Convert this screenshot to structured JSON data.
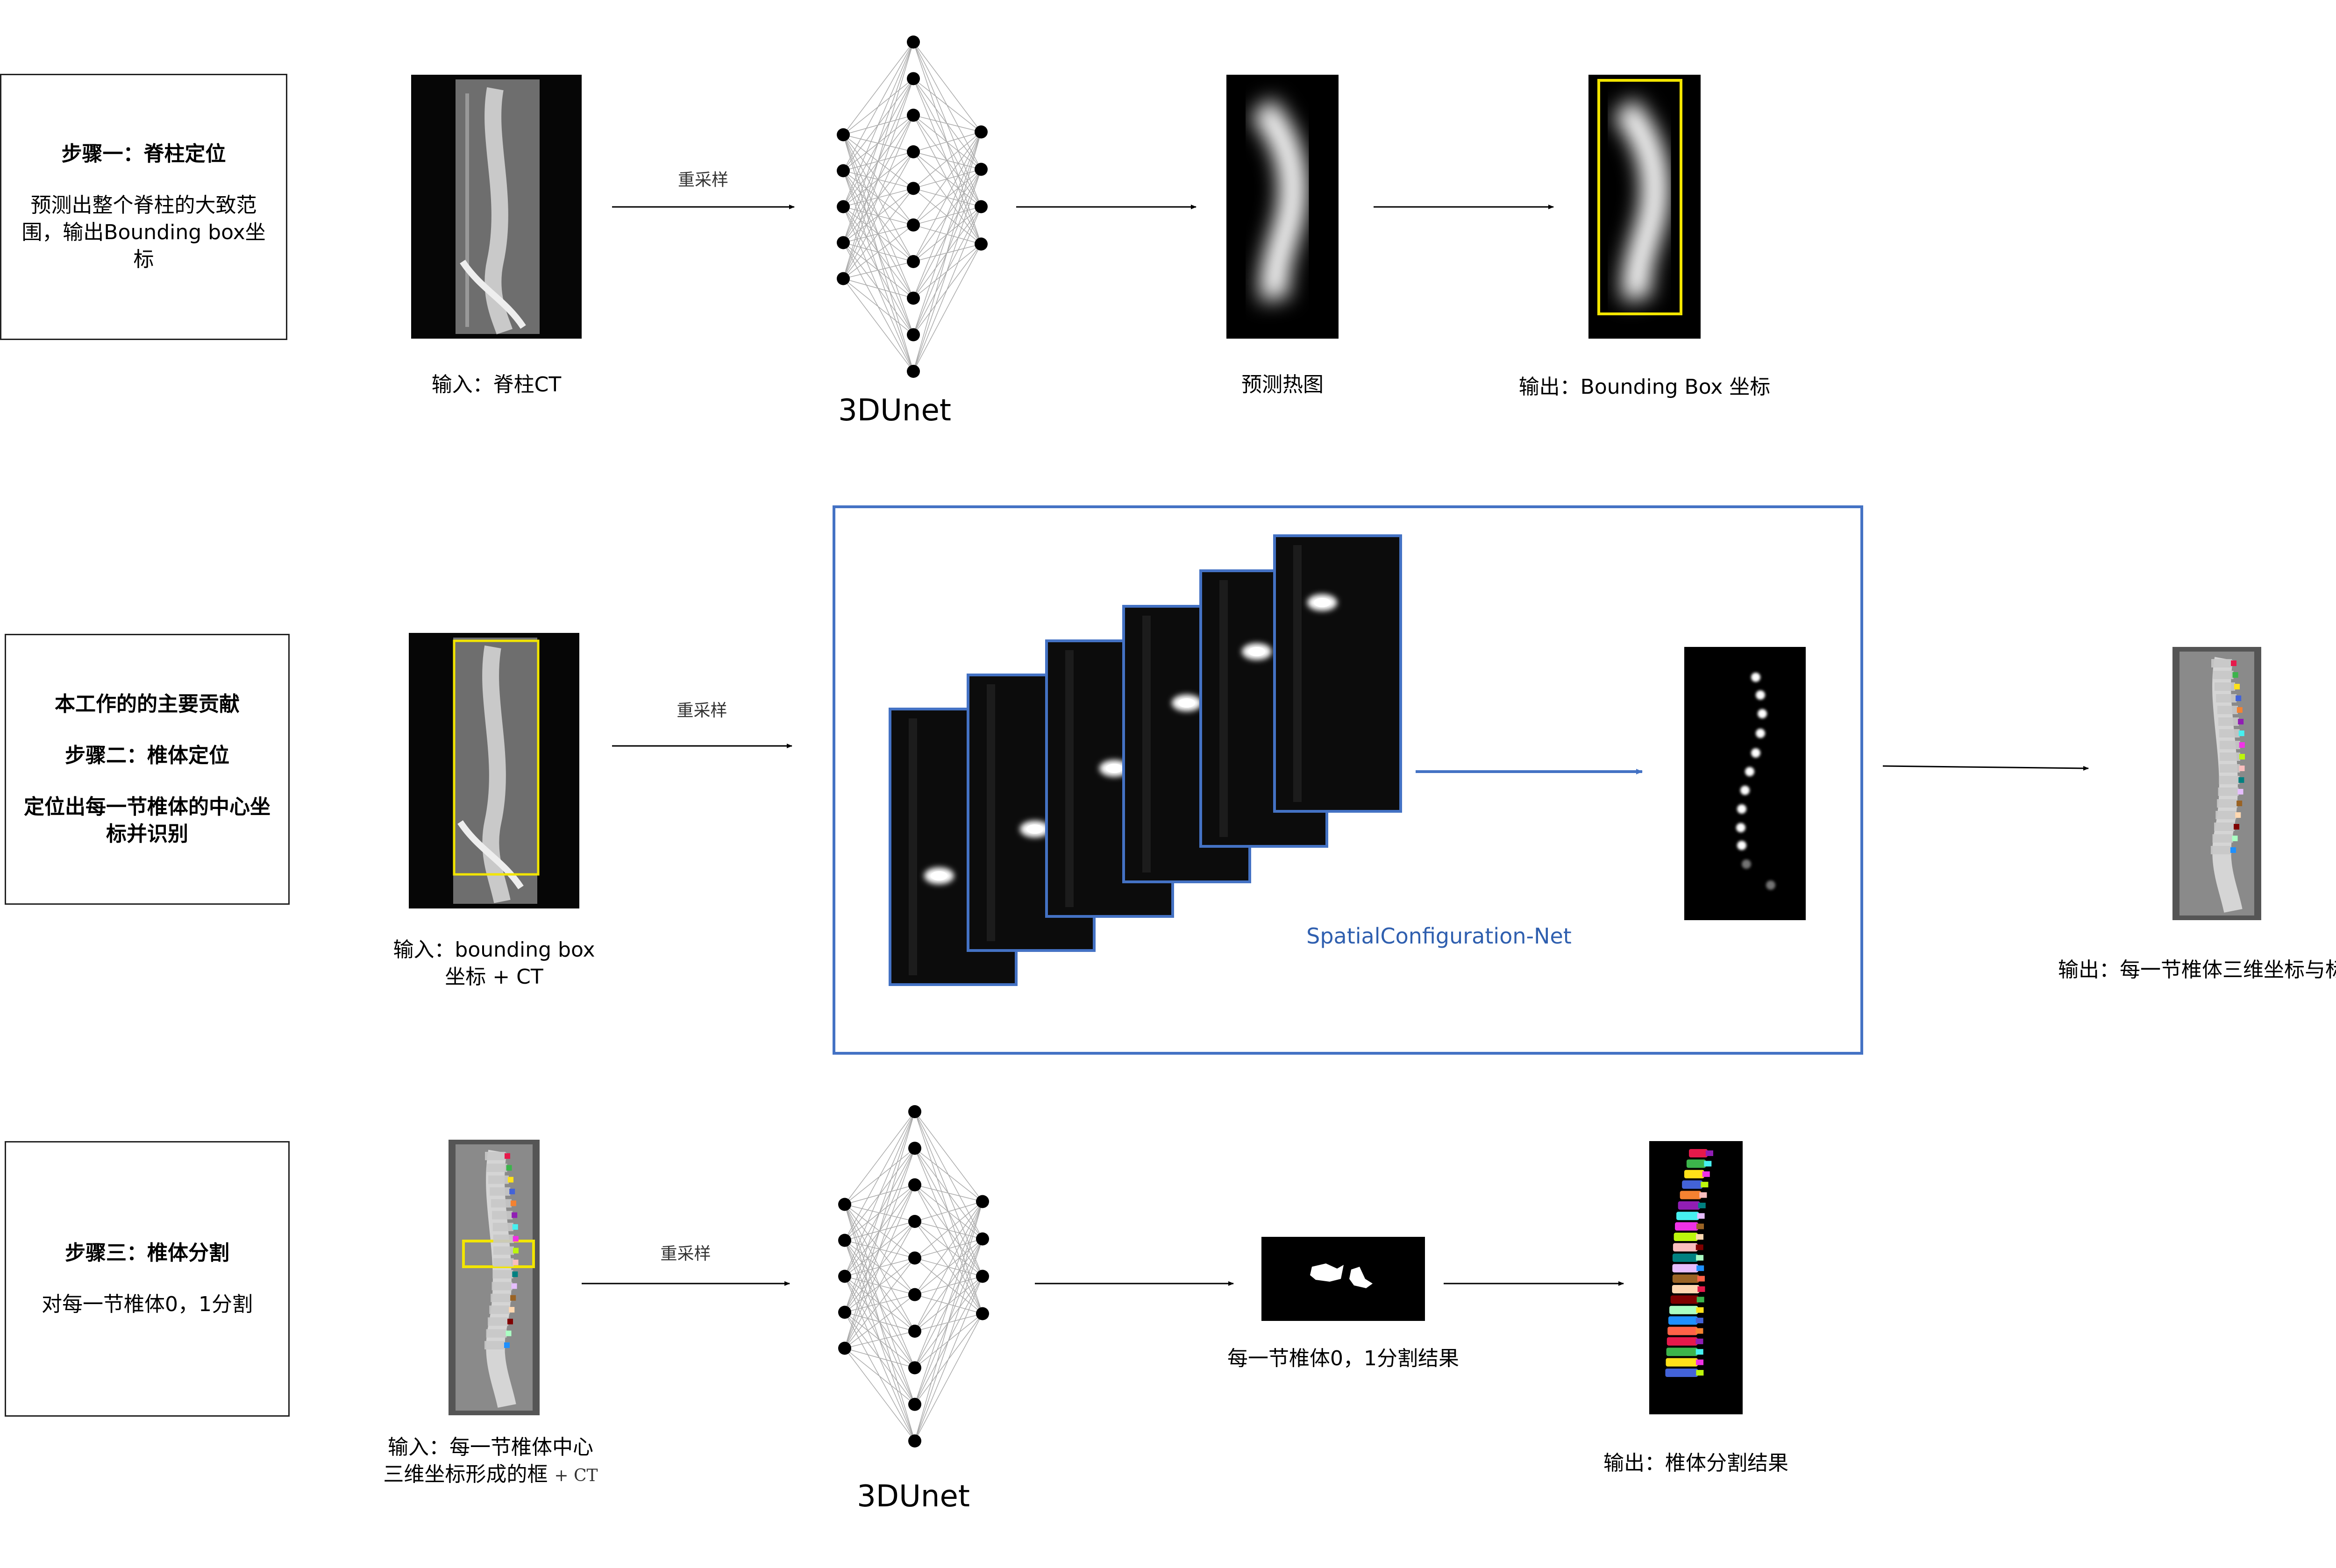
{
  "step1": {
    "box_title": "步骤一：脊柱定位",
    "box_desc": "预测出整个脊柱的大致范围，输出Bounding box坐标",
    "input_label": "输入：脊柱CT",
    "resample_label": "重采样",
    "net_label": "3DUnet",
    "heatmap_label": "预测热图",
    "output_label": "输出：Bounding Box 坐标"
  },
  "step2": {
    "box_contribution": "本工作的的主要贡献",
    "box_title": "步骤二：椎体定位",
    "box_desc": "定位出每一节椎体的中心坐标并识别",
    "input_label_line1": "输入：bounding box",
    "input_label_line2": "坐标 + CT",
    "resample_label": "重采样",
    "net_label": "SpatialConfiguration-Net",
    "output_label": "输出：每一节椎体三维坐标与标签"
  },
  "step3": {
    "box_title": "步骤三：椎体分割",
    "box_desc": "对每一节椎体0，1分割",
    "input_label_line1": "输入：每一节椎体中心",
    "input_label_line2": "三维坐标形成的框",
    "input_label_suffix": "+ CT",
    "resample_label": "重采样",
    "net_label": "3DUnet",
    "mask_label": "每一节椎体0，1分割结果",
    "output_label": "输出：椎体分割结果"
  },
  "colors": {
    "accent_blue": "#4472c4",
    "bbox_yellow": "#f2e500",
    "seg_palette": [
      "#e6194b",
      "#3cb44b",
      "#ffe119",
      "#4363d8",
      "#f58231",
      "#911eb4",
      "#46f0f0",
      "#f032e6",
      "#bcf60c",
      "#fabebe",
      "#008080",
      "#e6beff",
      "#9a6324",
      "#ffd8b1",
      "#800000",
      "#aaffc3",
      "#1e90ff",
      "#ff6347"
    ]
  },
  "icons": [
    "ct-sagittal-image",
    "neural-network-icon",
    "heatmap-image",
    "arrow-right-icon",
    "heatmap-stack-image",
    "segmentation-mask-image"
  ]
}
